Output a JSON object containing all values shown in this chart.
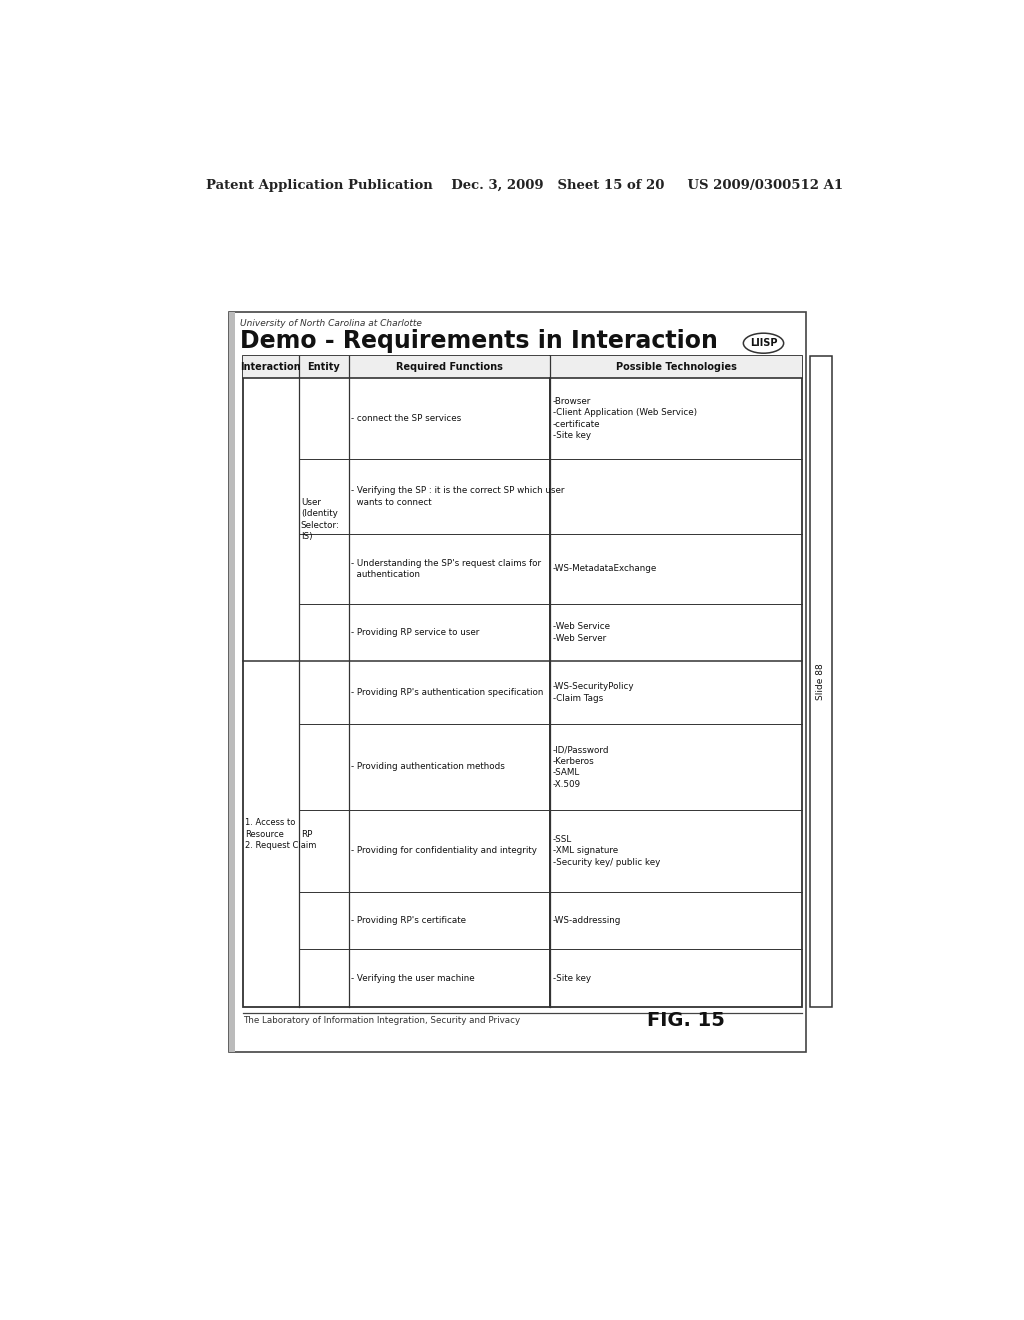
{
  "bg_color": "#ffffff",
  "header_text": "Patent Application Publication    Dec. 3, 2009   Sheet 15 of 20     US 2009/0300512 A1",
  "univ_text": "University of North Carolina at Charlotte",
  "slide_title": "Demo - Requirements in Interaction",
  "fig_label": "FIG. 15",
  "liisp_label": "LIISP",
  "slide_num": "Slide 88",
  "footer_text": "The Laboratory of Information Integration, Security and Privacy",
  "col_headers": [
    "Interaction",
    "Entity",
    "Required Functions",
    "Possible Technologies"
  ],
  "user_funcs": [
    "- connect the SP services",
    "- Verifying the SP : it is the correct SP which user\n  wants to connect",
    "- Understanding the SP's request claims for\n  authentication",
    "- Providing RP service to user"
  ],
  "rp_funcs": [
    "- Providing RP's authentication specification",
    "- Providing authentication methods",
    "- Providing for confidentiality and integrity",
    "- Providing RP's certificate",
    "- Verifying the user machine"
  ],
  "user_techs": [
    "-Browser\n-Client Application (Web Service)\n-certificate\n-Site key",
    "",
    "-WS-MetadataExchange",
    "-Web Service\n-Web Server"
  ],
  "rp_techs": [
    "-WS-SecurityPolicy\n-Claim Tags",
    "-ID/Password\n-Kerberos\n-SAML\n-X.509",
    "-SSL\n-XML signature\n-Security key/ public key",
    "-WS-addressing",
    "-Site key"
  ],
  "interaction_rp": "1. Access to\nResource\n2. Request Claim",
  "entity_user": "User\n(Identity\nSelector:\nIS)",
  "entity_rp": "RP"
}
